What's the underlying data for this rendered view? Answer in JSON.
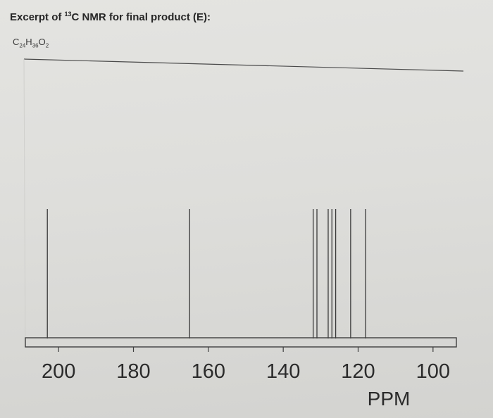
{
  "header": {
    "title_prefix": "Excerpt of ",
    "title_isotope": "13",
    "title_suffix": "C NMR for final product (E):",
    "formula": {
      "c": "C",
      "c_n": "24",
      "h": "H",
      "h_n": "36",
      "o": "O",
      "o_n": "2"
    }
  },
  "chart_data": {
    "type": "bar",
    "xlabel": "PPM",
    "xlim": [
      210,
      90
    ],
    "x_reversed": true,
    "ticks": [
      200,
      180,
      160,
      140,
      120,
      100
    ],
    "peaks_ppm": [
      203,
      165,
      132,
      131,
      128,
      127,
      126,
      122,
      118
    ],
    "peak_height_relative": 1.0,
    "line_color": "#3a3a3a"
  }
}
